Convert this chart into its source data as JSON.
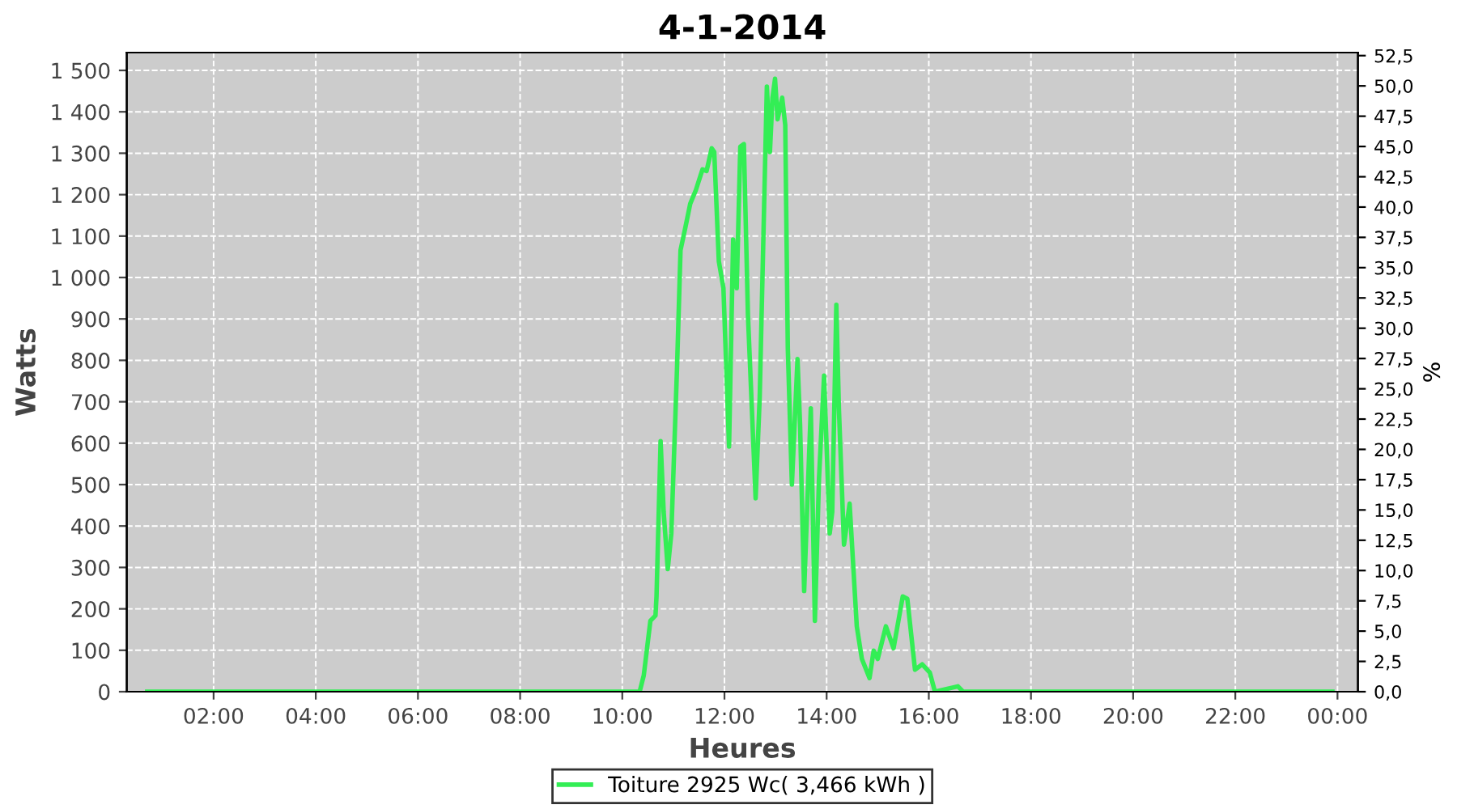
{
  "chart_data": {
    "type": "line",
    "title": "4-1-2014",
    "xlabel": "Heures",
    "ylabel": "Watts",
    "y2label": "%",
    "xlim": [
      0.3,
      24.4
    ],
    "ylim": [
      0,
      1543
    ],
    "y2lim": [
      0,
      52.75
    ],
    "xticks": [
      {
        "value": 2,
        "label": "02:00"
      },
      {
        "value": 4,
        "label": "04:00"
      },
      {
        "value": 6,
        "label": "06:00"
      },
      {
        "value": 8,
        "label": "08:00"
      },
      {
        "value": 10,
        "label": "10:00"
      },
      {
        "value": 12,
        "label": "12:00"
      },
      {
        "value": 14,
        "label": "14:00"
      },
      {
        "value": 16,
        "label": "16:00"
      },
      {
        "value": 18,
        "label": "18:00"
      },
      {
        "value": 20,
        "label": "20:00"
      },
      {
        "value": 22,
        "label": "22:00"
      },
      {
        "value": 24,
        "label": "00:00"
      }
    ],
    "yticks": [
      0,
      100,
      200,
      300,
      400,
      500,
      600,
      700,
      800,
      900,
      {
        "value": 1000,
        "label": "1 000"
      },
      {
        "value": 1100,
        "label": "1 100"
      },
      {
        "value": 1200,
        "label": "1 200"
      },
      {
        "value": 1300,
        "label": "1 300"
      },
      {
        "value": 1400,
        "label": "1 400"
      },
      {
        "value": 1500,
        "label": "1 500"
      }
    ],
    "y2ticks": [
      {
        "value": 0,
        "label": "0,0"
      },
      {
        "value": 2.5,
        "label": "2,5"
      },
      {
        "value": 5,
        "label": "5,0"
      },
      {
        "value": 7.5,
        "label": "7,5"
      },
      {
        "value": 10,
        "label": "10,0"
      },
      {
        "value": 12.5,
        "label": "12,5"
      },
      {
        "value": 15,
        "label": "15,0"
      },
      {
        "value": 17.5,
        "label": "17,5"
      },
      {
        "value": 20,
        "label": "20,0"
      },
      {
        "value": 22.5,
        "label": "22,5"
      },
      {
        "value": 25,
        "label": "25,0"
      },
      {
        "value": 27.5,
        "label": "27,5"
      },
      {
        "value": 30,
        "label": "30,0"
      },
      {
        "value": 32.5,
        "label": "32,5"
      },
      {
        "value": 35,
        "label": "35,0"
      },
      {
        "value": 37.5,
        "label": "37,5"
      },
      {
        "value": 40,
        "label": "40,0"
      },
      {
        "value": 42.5,
        "label": "42,5"
      },
      {
        "value": 45,
        "label": "45,0"
      },
      {
        "value": 47.5,
        "label": "47,5"
      },
      {
        "value": 50,
        "label": "50,0"
      },
      {
        "value": 52.5,
        "label": "52,5"
      }
    ],
    "grid": true,
    "legend": "bottom",
    "line_style": "solid",
    "series": [
      {
        "name": "Toiture 2925 Wc( 3,466 kWh )",
        "color": "#33ee55",
        "x": [
          0.7,
          5,
          9.5,
          10.34,
          10.42,
          10.55,
          10.65,
          10.67,
          10.75,
          10.81,
          10.89,
          10.96,
          11.07,
          11.14,
          11.23,
          11.33,
          11.44,
          11.57,
          11.65,
          11.75,
          11.8,
          11.89,
          11.98,
          12.09,
          12.17,
          12.24,
          12.31,
          12.38,
          12.46,
          12.61,
          12.69,
          12.83,
          12.89,
          12.94,
          12.99,
          13.04,
          13.13,
          13.19,
          13.24,
          13.32,
          13.43,
          13.48,
          13.56,
          13.69,
          13.77,
          13.85,
          13.95,
          14.06,
          14.11,
          14.19,
          14.24,
          14.34,
          14.45,
          14.59,
          14.69,
          14.84,
          14.92,
          15.0,
          15.16,
          15.31,
          15.49,
          15.58,
          15.73,
          15.87,
          16.02,
          16.12,
          16.57,
          16.67,
          20,
          23.9
        ],
        "values": [
          0,
          0,
          0,
          0,
          39,
          171,
          184,
          230,
          605,
          434,
          296,
          382,
          776,
          1066,
          1118,
          1178,
          1211,
          1261,
          1257,
          1312,
          1303,
          1039,
          974,
          592,
          1092,
          974,
          1316,
          1322,
          908,
          467,
          711,
          1461,
          1303,
          1434,
          1480,
          1382,
          1434,
          1368,
          829,
          500,
          803,
          645,
          243,
          684,
          171,
          513,
          763,
          382,
          434,
          934,
          684,
          355,
          454,
          158,
          79,
          33,
          99,
          79,
          158,
          105,
          230,
          224,
          53,
          66,
          46,
          0,
          13,
          0,
          0,
          0
        ]
      }
    ]
  }
}
